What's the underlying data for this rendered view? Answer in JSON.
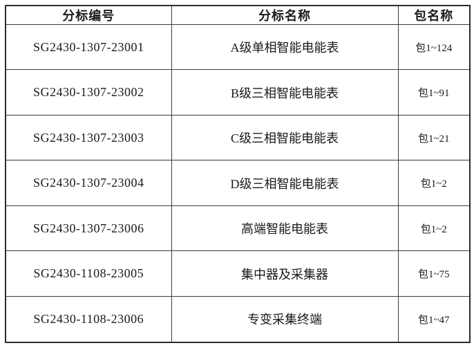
{
  "table": {
    "columns": [
      {
        "label": "分标编号"
      },
      {
        "label": "分标名称"
      },
      {
        "label": "包名称"
      }
    ],
    "rows": [
      {
        "code": "SG2430-1307-23001",
        "name": "A级单相智能电能表",
        "packages": "包1~124"
      },
      {
        "code": "SG2430-1307-23002",
        "name": "B级三相智能电能表",
        "packages": "包1~91"
      },
      {
        "code": "SG2430-1307-23003",
        "name": "C级三相智能电能表",
        "packages": "包1~21"
      },
      {
        "code": "SG2430-1307-23004",
        "name": "D级三相智能电能表",
        "packages": "包1~2"
      },
      {
        "code": "SG2430-1307-23006",
        "name": "高端智能电能表",
        "packages": "包1~2"
      },
      {
        "code": "SG2430-1108-23005",
        "name": "集中器及采集器",
        "packages": "包1~75"
      },
      {
        "code": "SG2430-1108-23006",
        "name": "专变采集终端",
        "packages": "包1~47"
      }
    ],
    "colors": {
      "border_outer": "#2b2b2b",
      "border_inner": "#3a3a3a",
      "text": "#1a1a1a",
      "background": "#ffffff"
    }
  }
}
